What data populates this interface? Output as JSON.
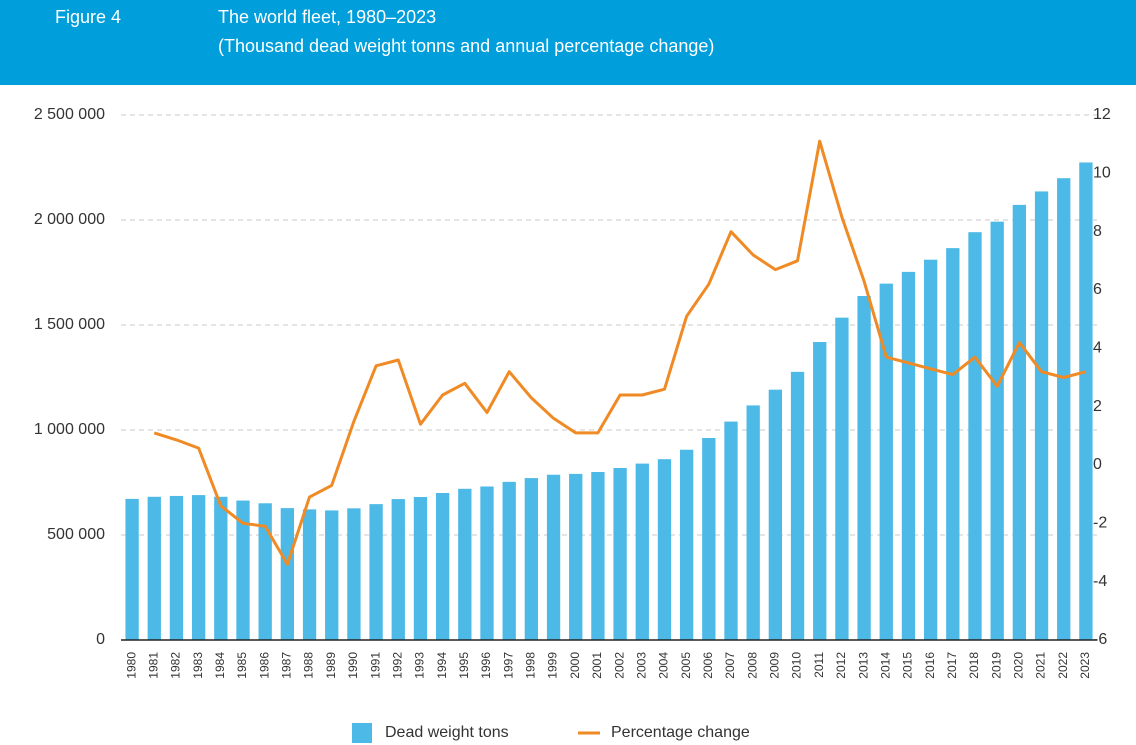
{
  "chart_data": {
    "type": "bar",
    "figure_label": "Figure 4",
    "title": "The world fleet, 1980–2023",
    "subtitle": "(Thousand dead weight tonns and annual percentage change)",
    "categories": [
      "1980",
      "1981",
      "1982",
      "1983",
      "1984",
      "1985",
      "1986",
      "1987",
      "1988",
      "1989",
      "1990",
      "1991",
      "1992",
      "1993",
      "1994",
      "1995",
      "1996",
      "1997",
      "1998",
      "1999",
      "2000",
      "2001",
      "2002",
      "2003",
      "2004",
      "2005",
      "2006",
      "2007",
      "2008",
      "2009",
      "2010",
      "2011",
      "2012",
      "2013",
      "2014",
      "2015",
      "2016",
      "2017",
      "2018",
      "2019",
      "2020",
      "2021",
      "2022",
      "2023"
    ],
    "series": [
      {
        "name": "Dead weight tons",
        "type": "bar",
        "color": "#4cb9e7",
        "values": [
          672000,
          682000,
          686000,
          690000,
          682000,
          664000,
          651000,
          628000,
          622000,
          617000,
          627000,
          647000,
          671000,
          681000,
          700000,
          720000,
          731000,
          753000,
          771000,
          787000,
          791000,
          800000,
          819000,
          840000,
          861000,
          906000,
          962000,
          1040000,
          1117000,
          1192000,
          1277000,
          1419000,
          1535000,
          1638000,
          1697000,
          1753000,
          1811000,
          1866000,
          1942000,
          1992000,
          2072000,
          2136000,
          2199000,
          2274000
        ]
      },
      {
        "name": "Percentage change",
        "type": "line",
        "axis": "y2",
        "color": "#f08a24",
        "values": [
          null,
          1.1,
          0.86,
          0.58,
          -1.4,
          -2.0,
          -2.1,
          -3.4,
          -1.1,
          -0.7,
          1.5,
          3.4,
          3.6,
          1.4,
          2.4,
          2.8,
          1.8,
          3.2,
          2.3,
          1.6,
          1.1,
          1.1,
          2.4,
          2.4,
          2.6,
          5.1,
          6.2,
          8.0,
          7.2,
          6.7,
          7.0,
          11.1,
          8.5,
          6.3,
          3.7,
          3.5,
          3.3,
          3.1,
          3.7,
          2.7,
          4.2,
          3.2,
          3.0,
          3.2
        ]
      }
    ],
    "ylim": [
      0,
      2500000
    ],
    "yticks": [
      0,
      {
        "value": 500000,
        "label": "500 000"
      },
      {
        "value": 1000000,
        "label": "1 000 000"
      },
      {
        "value": 1500000,
        "label": "1 500 000"
      },
      {
        "value": 2000000,
        "label": "2 000 000"
      },
      {
        "value": 2500000,
        "label": "2 500 000"
      }
    ],
    "y2lim": [
      -6,
      12
    ],
    "y2ticks": [
      -6,
      -4,
      -2,
      0,
      2,
      4,
      6,
      8,
      10,
      12
    ],
    "grid": true
  }
}
